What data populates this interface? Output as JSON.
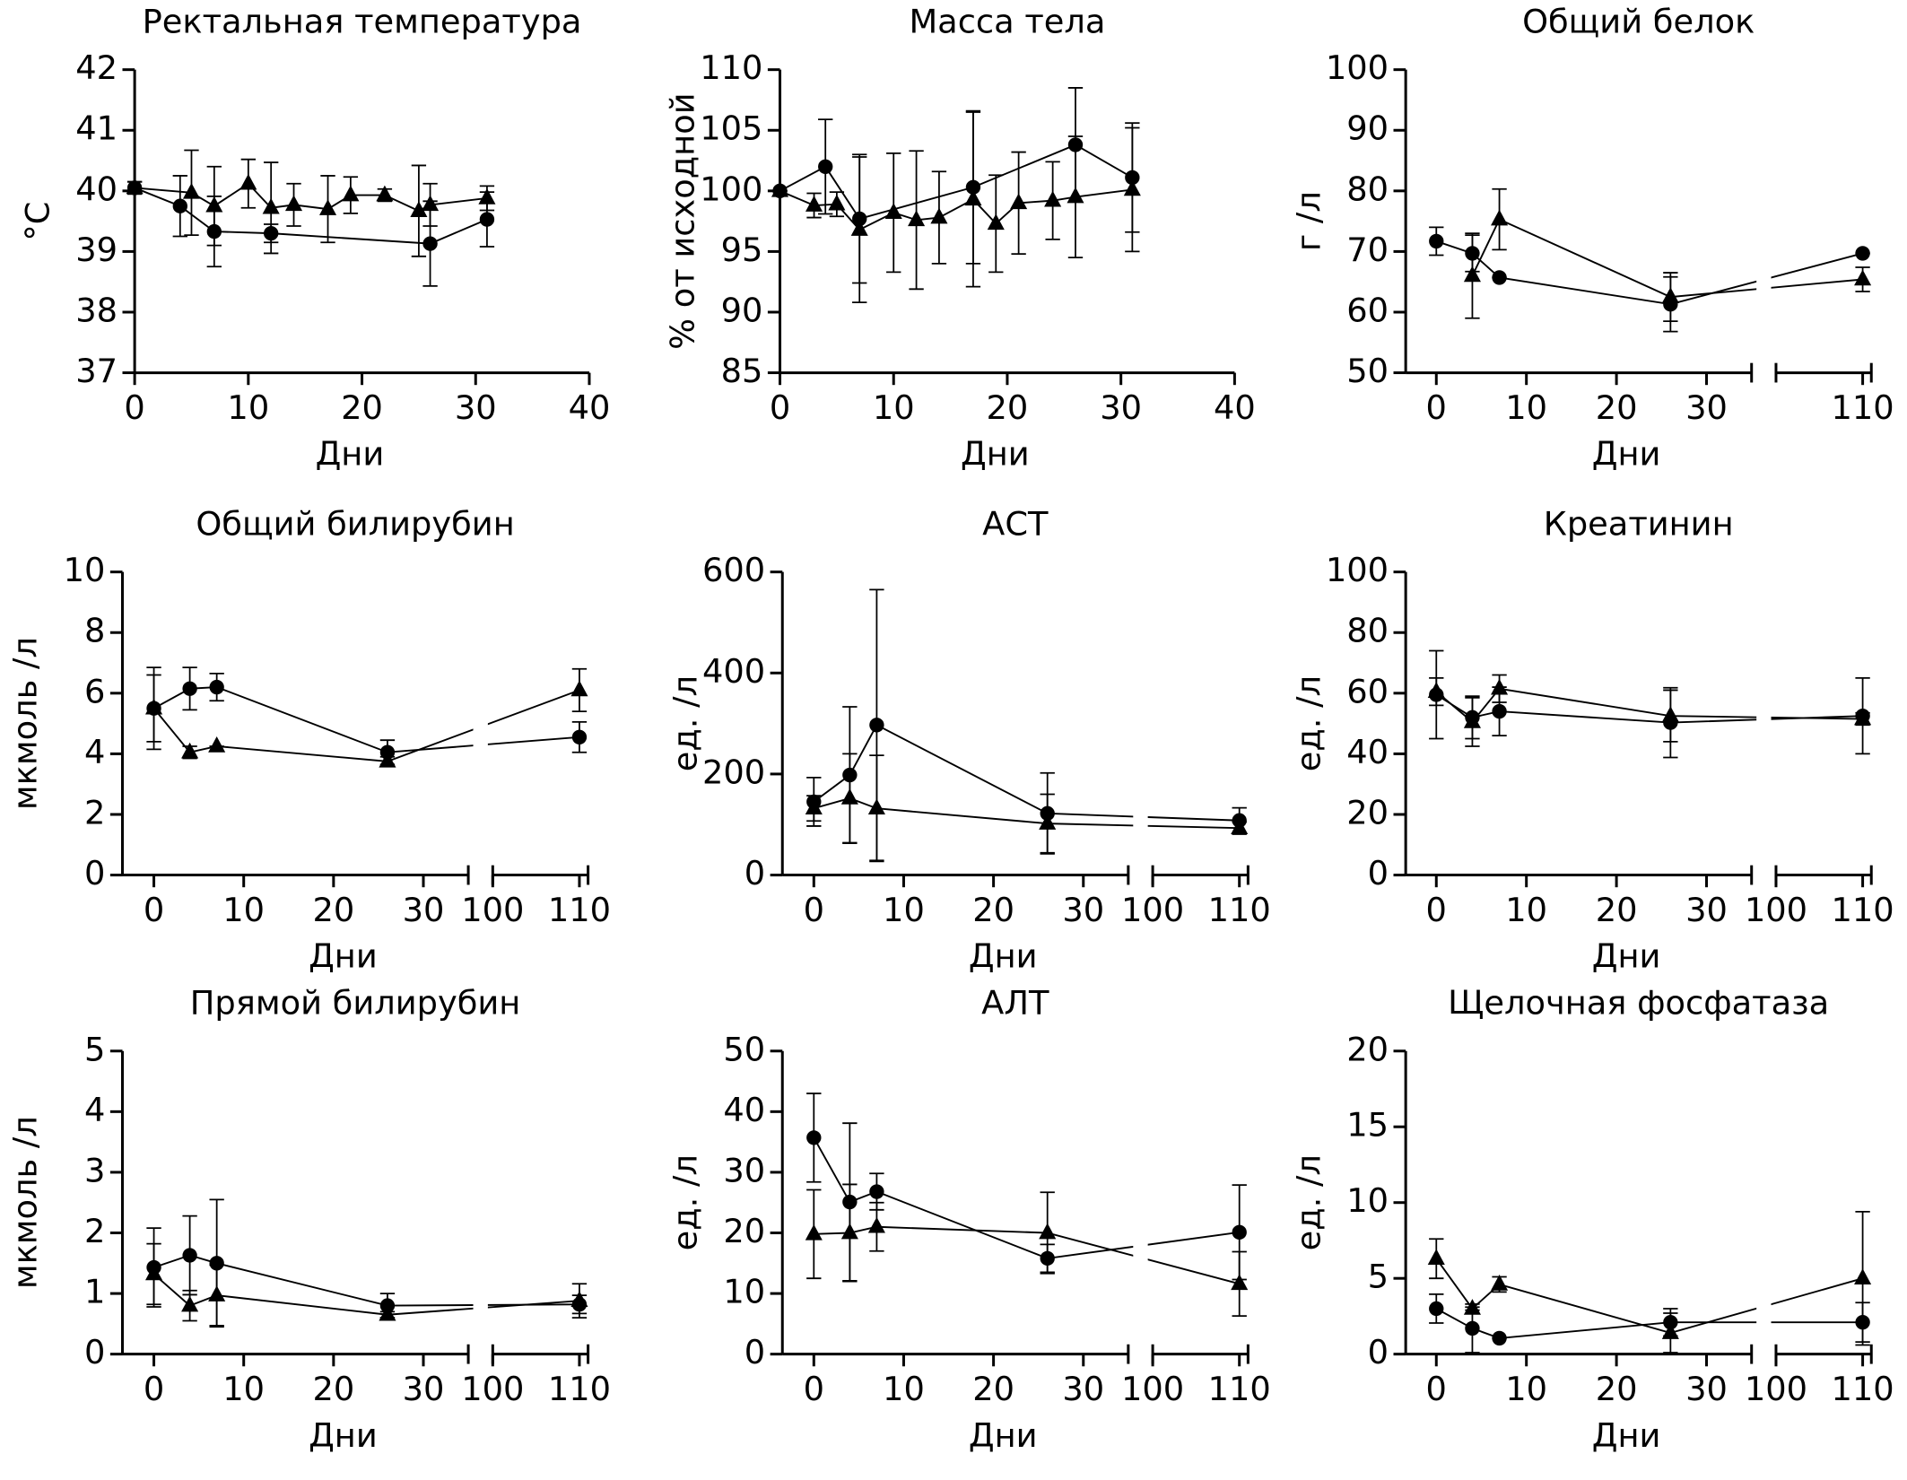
{
  "chart_data": [
    {
      "type": "line",
      "title": "Ректальная температура",
      "y_label": "°C",
      "x_label": "Дни",
      "xlim": [
        0,
        40
      ],
      "xticks": [
        0,
        10,
        20,
        30,
        40
      ],
      "ylim": [
        37,
        42
      ],
      "yticks": [
        37,
        38,
        39,
        40,
        41,
        42
      ],
      "series": [
        {
          "marker": "circle",
          "color": "#000000",
          "x": [
            0,
            4,
            7,
            12,
            26,
            31
          ],
          "values": [
            40.05,
            39.75,
            39.33,
            39.3,
            39.13,
            39.53
          ],
          "errors": [
            0.1,
            0.5,
            0.58,
            0.15,
            0.7,
            0.45
          ]
        },
        {
          "marker": "triangle",
          "color": "#000000",
          "x": [
            0,
            5,
            7,
            10,
            12,
            14,
            17,
            19,
            22,
            25,
            26,
            31
          ],
          "values": [
            40.05,
            39.97,
            39.75,
            40.12,
            39.72,
            39.77,
            39.7,
            39.93,
            39.93,
            39.67,
            39.77,
            39.88
          ],
          "errors": [
            0.1,
            0.7,
            0.65,
            0.4,
            0.75,
            0.35,
            0.55,
            0.3,
            0.1,
            0.75,
            0.35,
            0.2
          ]
        }
      ]
    },
    {
      "type": "line",
      "title": "Масса тела",
      "y_label": "% от исходной",
      "x_label": "Дни",
      "xlim": [
        0,
        40
      ],
      "xticks": [
        0,
        10,
        20,
        30,
        40
      ],
      "ylim": [
        85,
        110
      ],
      "yticks": [
        85,
        90,
        95,
        100,
        105,
        110
      ],
      "series": [
        {
          "marker": "circle",
          "color": "#000000",
          "x": [
            0,
            4,
            7,
            17,
            26,
            31
          ],
          "values": [
            100,
            102,
            97.7,
            100.3,
            103.8,
            101.1
          ],
          "errors": [
            0,
            3.9,
            5.3,
            6.3,
            4.7,
            4.5
          ]
        },
        {
          "marker": "triangle",
          "color": "#000000",
          "x": [
            0,
            3,
            5,
            7,
            10,
            12,
            14,
            17,
            19,
            21,
            24,
            26,
            31
          ],
          "values": [
            100,
            98.8,
            98.9,
            96.8,
            98.2,
            97.6,
            97.8,
            99.3,
            97.3,
            99,
            99.2,
            99.5,
            100.1
          ],
          "errors": [
            0,
            1,
            1,
            6,
            4.9,
            5.7,
            3.8,
            7.2,
            4,
            4.2,
            3.2,
            5,
            5.1
          ]
        }
      ]
    },
    {
      "type": "line",
      "title": "Общий белок",
      "y_label": "г /л",
      "x_label": "Дни",
      "xlim": [
        [
          -3.4,
          35
        ],
        [
          100,
          111
        ]
      ],
      "xticks": [
        [
          0,
          10,
          20,
          30
        ],
        [
          110
        ]
      ],
      "ylim": [
        50,
        100
      ],
      "yticks": [
        50,
        60,
        70,
        80,
        90,
        100
      ],
      "series": [
        {
          "marker": "circle",
          "color": "#000000",
          "x": [
            0,
            4,
            7,
            26,
            110
          ],
          "values": [
            71.7,
            69.7,
            65.7,
            61.3,
            69.7
          ],
          "errors": [
            2.3,
            3,
            0,
            4.5,
            0
          ]
        },
        {
          "marker": "triangle",
          "color": "#000000",
          "x": [
            4,
            7,
            26,
            110
          ],
          "values": [
            66,
            75.3,
            62.5,
            65.4
          ],
          "errors": [
            7,
            5,
            4,
            2
          ]
        }
      ]
    },
    {
      "type": "line",
      "title": "Общий билирубин",
      "y_label": "мкмоль /л",
      "x_label": "Дни",
      "xlim": [
        [
          -3.5,
          35
        ],
        [
          100,
          111
        ]
      ],
      "xticks": [
        [
          0,
          10,
          20,
          30
        ],
        [
          100,
          110
        ]
      ],
      "ylim": [
        0,
        10
      ],
      "yticks": [
        0,
        2,
        4,
        6,
        8,
        10
      ],
      "series": [
        {
          "marker": "circle",
          "color": "#000000",
          "x": [
            0,
            4,
            7,
            26,
            110
          ],
          "values": [
            5.5,
            6.15,
            6.2,
            4.05,
            4.55
          ],
          "errors": [
            1.35,
            0.7,
            0.45,
            0.4,
            0.5
          ]
        },
        {
          "marker": "triangle",
          "color": "#000000",
          "x": [
            0,
            4,
            7,
            26,
            110
          ],
          "values": [
            5.5,
            4.05,
            4.25,
            3.75,
            6.1
          ],
          "errors": [
            1.1,
            0.2,
            0,
            0.15,
            0.7
          ]
        }
      ]
    },
    {
      "type": "line",
      "title": "АСТ",
      "y_label": "ед. /л",
      "x_label": "Дни",
      "xlim": [
        [
          -3.5,
          35
        ],
        [
          100,
          111
        ]
      ],
      "xticks": [
        [
          0,
          10,
          20,
          30
        ],
        [
          100,
          110
        ]
      ],
      "ylim": [
        0,
        600
      ],
      "yticks": [
        0,
        200,
        400,
        600
      ],
      "series": [
        {
          "marker": "circle",
          "color": "#000000",
          "x": [
            0,
            4,
            7,
            26,
            110
          ],
          "values": [
            145,
            198,
            297,
            122,
            108
          ],
          "errors": [
            48,
            135,
            268,
            80,
            25
          ]
        },
        {
          "marker": "triangle",
          "color": "#000000",
          "x": [
            0,
            4,
            7,
            26,
            110
          ],
          "values": [
            132,
            152,
            132,
            102,
            93
          ],
          "errors": [
            25,
            88,
            105,
            58,
            12
          ]
        }
      ]
    },
    {
      "type": "line",
      "title": "Креатинин",
      "y_label": "ед. /л",
      "x_label": "Дни",
      "xlim": [
        [
          -3.4,
          35
        ],
        [
          100,
          111
        ]
      ],
      "xticks": [
        [
          0,
          10,
          20,
          30
        ],
        [
          100,
          110
        ]
      ],
      "ylim": [
        0,
        100
      ],
      "yticks": [
        0,
        20,
        40,
        60,
        80,
        100
      ],
      "series": [
        {
          "marker": "circle",
          "color": "#000000",
          "x": [
            0,
            4,
            7,
            26,
            110
          ],
          "values": [
            59.5,
            52,
            54,
            50.3,
            52.5
          ],
          "errors": [
            14.5,
            7,
            8,
            11.5,
            12.5
          ]
        },
        {
          "marker": "triangle",
          "color": "#000000",
          "x": [
            0,
            4,
            7,
            26,
            110
          ],
          "values": [
            60.5,
            50.5,
            61.5,
            52.5,
            51.5
          ],
          "errors": [
            4.5,
            8,
            4.5,
            8.5,
            2
          ]
        }
      ]
    },
    {
      "type": "line",
      "title": "Прямой билирубин",
      "y_label": "мкмоль /л",
      "x_label": "Дни",
      "xlim": [
        [
          -3.5,
          35
        ],
        [
          100,
          111
        ]
      ],
      "xticks": [
        [
          0,
          10,
          20,
          30
        ],
        [
          100,
          110
        ]
      ],
      "ylim": [
        0,
        5
      ],
      "yticks": [
        0,
        1,
        2,
        3,
        4,
        5
      ],
      "series": [
        {
          "marker": "circle",
          "color": "#000000",
          "x": [
            0,
            4,
            7,
            26,
            110
          ],
          "values": [
            1.43,
            1.63,
            1.5,
            0.8,
            0.82
          ],
          "errors": [
            0.65,
            0.65,
            1.05,
            0.2,
            0.15
          ]
        },
        {
          "marker": "triangle",
          "color": "#000000",
          "x": [
            0,
            4,
            7,
            26,
            110
          ],
          "values": [
            1.32,
            0.8,
            0.97,
            0.65,
            0.88
          ],
          "errors": [
            0.5,
            0.25,
            0.5,
            0.05,
            0.28
          ]
        }
      ]
    },
    {
      "type": "line",
      "title": "АЛТ",
      "y_label": "ед. /л",
      "x_label": "Дни",
      "xlim": [
        [
          -3.5,
          35
        ],
        [
          100,
          111
        ]
      ],
      "xticks": [
        [
          0,
          10,
          20,
          30
        ],
        [
          100,
          110
        ]
      ],
      "ylim": [
        0,
        50
      ],
      "yticks": [
        0,
        10,
        20,
        30,
        40,
        50
      ],
      "series": [
        {
          "marker": "circle",
          "color": "#000000",
          "x": [
            0,
            4,
            7,
            26,
            110
          ],
          "values": [
            35.7,
            25.1,
            26.8,
            15.8,
            20.1
          ],
          "errors": [
            7.3,
            13,
            3,
            2.3,
            7.8
          ]
        },
        {
          "marker": "triangle",
          "color": "#000000",
          "x": [
            0,
            4,
            7,
            26,
            110
          ],
          "values": [
            19.8,
            20,
            21,
            20,
            11.6
          ],
          "errors": [
            7.3,
            8,
            4,
            6.7,
            5.3
          ]
        }
      ]
    },
    {
      "type": "line",
      "title": "Щелочная фосфатаза",
      "y_label": "ед. /л",
      "x_label": "Дни",
      "xlim": [
        [
          -3.4,
          35
        ],
        [
          100,
          111
        ]
      ],
      "xticks": [
        [
          0,
          10,
          20,
          30
        ],
        [
          100,
          110
        ]
      ],
      "ylim": [
        0,
        20
      ],
      "yticks": [
        0,
        5,
        10,
        15,
        20
      ],
      "series": [
        {
          "marker": "circle",
          "color": "#000000",
          "x": [
            0,
            4,
            7,
            26,
            110
          ],
          "values": [
            3,
            1.7,
            1.05,
            2.1,
            2.1
          ],
          "errors": [
            0.95,
            1.6,
            0,
            0.9,
            1.3
          ]
        },
        {
          "marker": "triangle",
          "color": "#000000",
          "x": [
            0,
            4,
            7,
            26,
            110
          ],
          "values": [
            6.3,
            3.0,
            4.6,
            1.4,
            5.0
          ],
          "errors": [
            1.3,
            0.1,
            0.5,
            1.3,
            4.4
          ]
        }
      ]
    }
  ]
}
